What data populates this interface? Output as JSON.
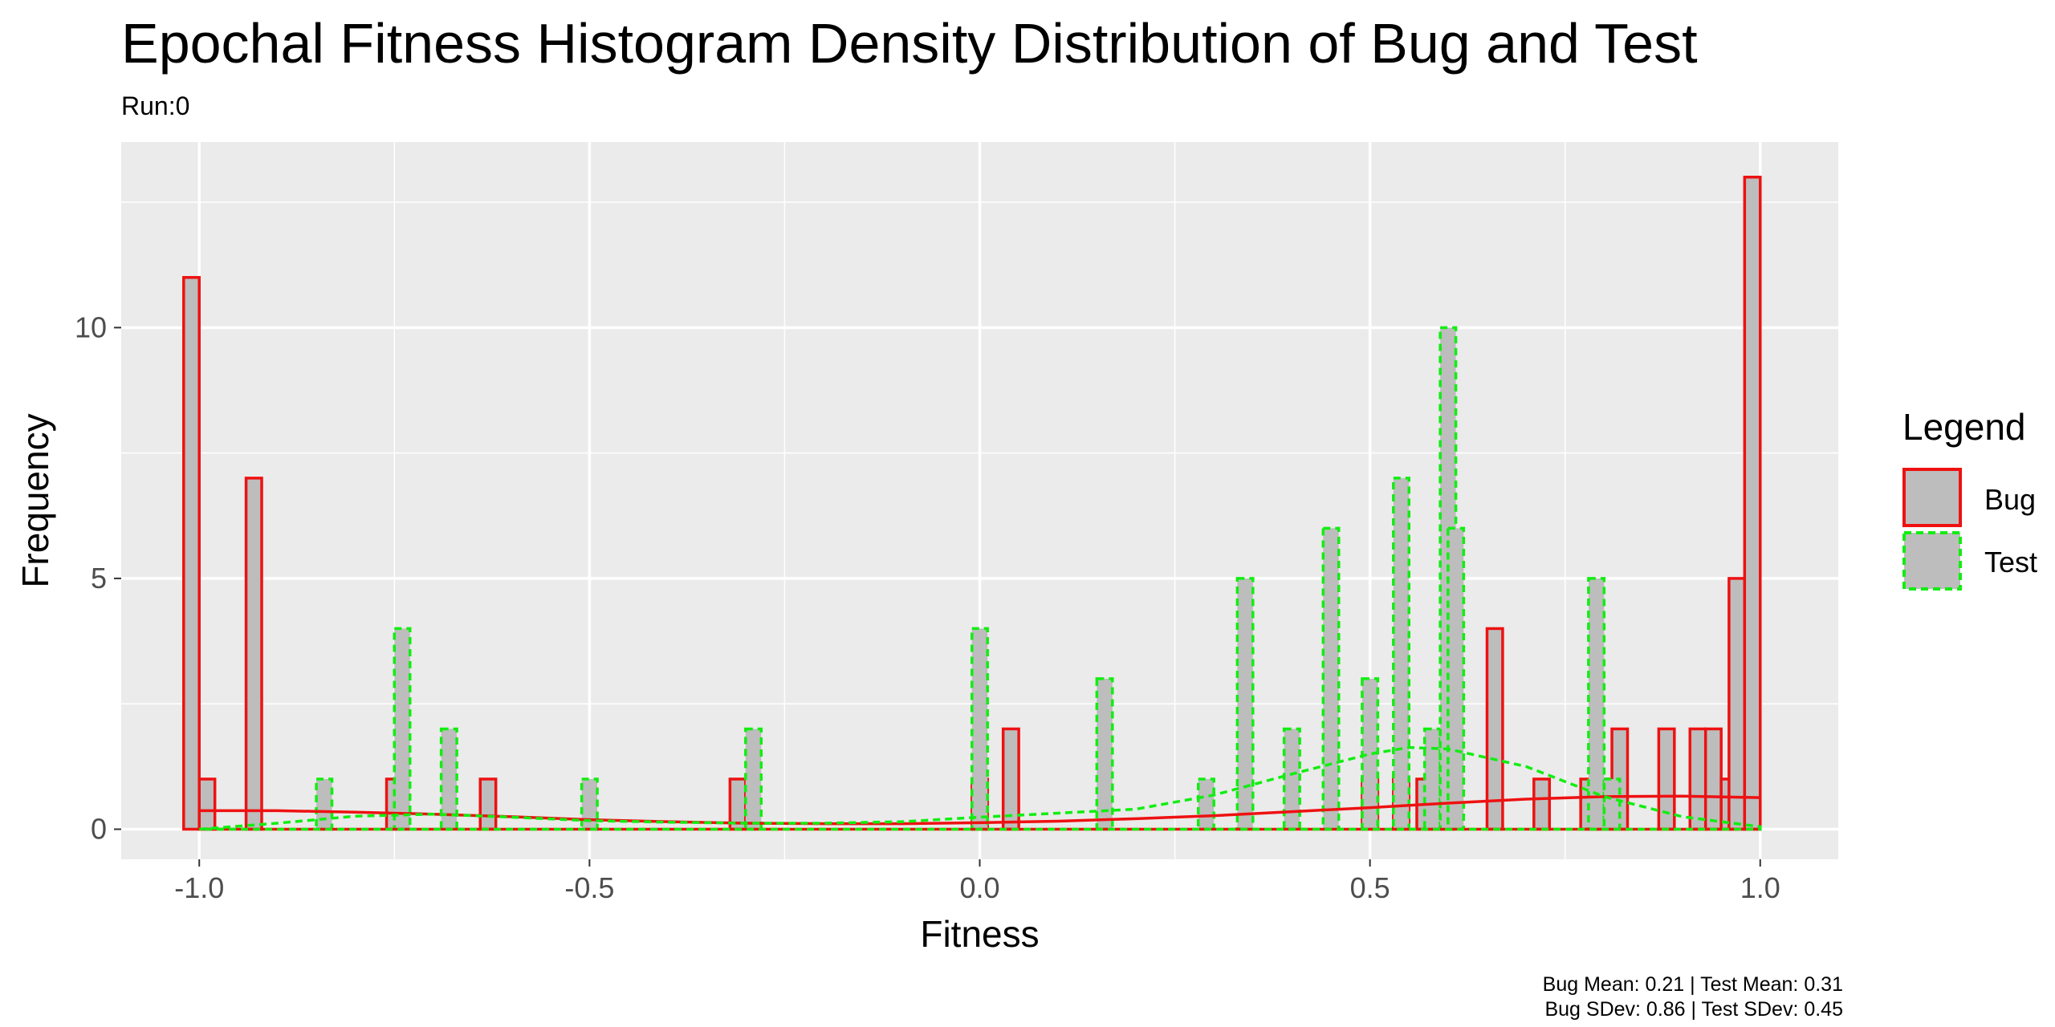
{
  "chart_data": {
    "type": "bar",
    "title": "Epochal Fitness Histogram Density Distribution of Bug and Test",
    "subtitle": "Run:0",
    "xlabel": "Fitness",
    "ylabel": "Frequency",
    "xlim": [
      -1.1,
      1.1
    ],
    "ylim": [
      -0.6,
      13.7
    ],
    "xticks": [
      -1.0,
      -0.5,
      0.0,
      0.5,
      1.0
    ],
    "xtick_labels": [
      "-1.0",
      "-0.5",
      "0.0",
      "0.5",
      "1.0"
    ],
    "yticks": [
      0,
      5,
      10
    ],
    "ytick_labels": [
      "0",
      "5",
      "10"
    ],
    "grid": true,
    "bin_width": 0.02,
    "legend": {
      "title": "Legend",
      "position": "right",
      "entries": [
        {
          "label": "Bug",
          "color": "#ee1111",
          "linestyle": "solid"
        },
        {
          "label": "Test",
          "color": "#11ee11",
          "linestyle": "dashed"
        }
      ]
    },
    "series": [
      {
        "name": "Bug",
        "color": "#ee1111",
        "bins": [
          {
            "x": -1.01,
            "y": 11
          },
          {
            "x": -0.99,
            "y": 1
          },
          {
            "x": -0.93,
            "y": 7
          },
          {
            "x": -0.75,
            "y": 1
          },
          {
            "x": -0.63,
            "y": 1
          },
          {
            "x": -0.31,
            "y": 1
          },
          {
            "x": 0.0,
            "y": 1
          },
          {
            "x": 0.04,
            "y": 2
          },
          {
            "x": 0.5,
            "y": 1
          },
          {
            "x": 0.54,
            "y": 1
          },
          {
            "x": 0.57,
            "y": 1
          },
          {
            "x": 0.59,
            "y": 1
          },
          {
            "x": 0.66,
            "y": 4
          },
          {
            "x": 0.72,
            "y": 1
          },
          {
            "x": 0.78,
            "y": 1
          },
          {
            "x": 0.8,
            "y": 1
          },
          {
            "x": 0.82,
            "y": 2
          },
          {
            "x": 0.88,
            "y": 2
          },
          {
            "x": 0.92,
            "y": 2
          },
          {
            "x": 0.94,
            "y": 2
          },
          {
            "x": 0.96,
            "y": 1
          },
          {
            "x": 0.97,
            "y": 5
          },
          {
            "x": 0.99,
            "y": 13
          }
        ],
        "density": [
          [
            -1.0,
            0.37
          ],
          [
            -0.9,
            0.37
          ],
          [
            -0.8,
            0.34
          ],
          [
            -0.7,
            0.3
          ],
          [
            -0.6,
            0.25
          ],
          [
            -0.5,
            0.19
          ],
          [
            -0.4,
            0.15
          ],
          [
            -0.3,
            0.12
          ],
          [
            -0.2,
            0.11
          ],
          [
            -0.1,
            0.11
          ],
          [
            0.0,
            0.13
          ],
          [
            0.1,
            0.16
          ],
          [
            0.2,
            0.21
          ],
          [
            0.3,
            0.27
          ],
          [
            0.4,
            0.35
          ],
          [
            0.5,
            0.43
          ],
          [
            0.6,
            0.52
          ],
          [
            0.7,
            0.6
          ],
          [
            0.8,
            0.65
          ],
          [
            0.9,
            0.66
          ],
          [
            1.0,
            0.63
          ]
        ]
      },
      {
        "name": "Test",
        "color": "#11ee11",
        "bins": [
          {
            "x": -0.84,
            "y": 1
          },
          {
            "x": -0.74,
            "y": 4
          },
          {
            "x": -0.68,
            "y": 2
          },
          {
            "x": -0.5,
            "y": 1
          },
          {
            "x": -0.29,
            "y": 2
          },
          {
            "x": 0.0,
            "y": 4
          },
          {
            "x": 0.16,
            "y": 3
          },
          {
            "x": 0.29,
            "y": 1
          },
          {
            "x": 0.34,
            "y": 5
          },
          {
            "x": 0.4,
            "y": 2
          },
          {
            "x": 0.45,
            "y": 6
          },
          {
            "x": 0.5,
            "y": 3
          },
          {
            "x": 0.54,
            "y": 7
          },
          {
            "x": 0.58,
            "y": 2
          },
          {
            "x": 0.6,
            "y": 10
          },
          {
            "x": 0.61,
            "y": 6
          },
          {
            "x": 0.79,
            "y": 5
          },
          {
            "x": 0.81,
            "y": 1
          }
        ],
        "density": [
          [
            -1.0,
            0.0
          ],
          [
            -0.9,
            0.12
          ],
          [
            -0.8,
            0.26
          ],
          [
            -0.7,
            0.3
          ],
          [
            -0.6,
            0.24
          ],
          [
            -0.5,
            0.17
          ],
          [
            -0.4,
            0.14
          ],
          [
            -0.3,
            0.12
          ],
          [
            -0.2,
            0.12
          ],
          [
            -0.1,
            0.15
          ],
          [
            0.0,
            0.24
          ],
          [
            0.1,
            0.32
          ],
          [
            0.2,
            0.4
          ],
          [
            0.3,
            0.68
          ],
          [
            0.4,
            1.1
          ],
          [
            0.5,
            1.5
          ],
          [
            0.55,
            1.63
          ],
          [
            0.6,
            1.6
          ],
          [
            0.7,
            1.25
          ],
          [
            0.8,
            0.65
          ],
          [
            0.9,
            0.25
          ],
          [
            1.0,
            0.05
          ]
        ]
      }
    ],
    "caption": [
      "Bug Mean: 0.21 | Test Mean: 0.31",
      "Bug SDev: 0.86 | Test SDev: 0.45"
    ]
  }
}
